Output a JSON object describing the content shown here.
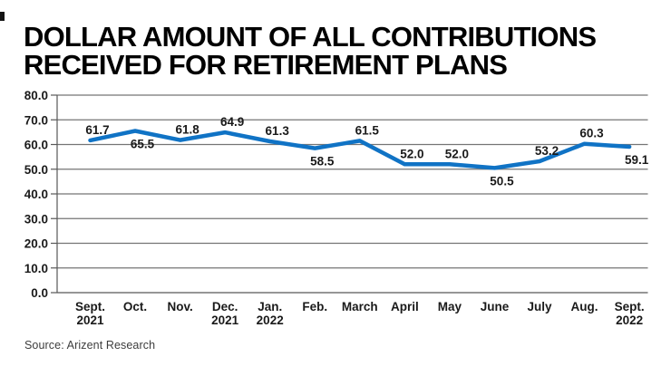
{
  "title": {
    "line1": "DOLLAR AMOUNT OF ALL CONTRIBUTIONS",
    "line2": "RECEIVED FOR RETIREMENT PLANS"
  },
  "source": {
    "label": "Source: Arizent Research"
  },
  "colors": {
    "line": "#1073C5",
    "grid": "#757575",
    "axis": "#585858",
    "chart_text": "#1a1a1a",
    "title_text": "#000000",
    "source_text": "#3d3d3d"
  },
  "chart_data": {
    "type": "line",
    "title": "DOLLAR AMOUNT OF ALL CONTRIBUTIONS RECEIVED FOR RETIREMENT PLANS",
    "categories": [
      "Sept. 2021",
      "Oct.",
      "Nov.",
      "Dec. 2021",
      "Jan. 2022",
      "Feb.",
      "March",
      "April",
      "May",
      "June",
      "July",
      "Aug.",
      "Sept. 2022"
    ],
    "category_lines": [
      [
        "Sept.",
        "2021"
      ],
      [
        "Oct."
      ],
      [
        "Nov."
      ],
      [
        "Dec.",
        "2021"
      ],
      [
        "Jan.",
        "2022"
      ],
      [
        "Feb."
      ],
      [
        "March"
      ],
      [
        "April"
      ],
      [
        "May"
      ],
      [
        "June"
      ],
      [
        "July"
      ],
      [
        "Aug."
      ],
      [
        "Sept.",
        "2022"
      ]
    ],
    "series": [
      {
        "name": "Dollar amount of all contributions",
        "values": [
          61.7,
          65.5,
          61.8,
          64.9,
          61.3,
          58.5,
          61.5,
          52.0,
          52.0,
          50.5,
          53.2,
          60.3,
          59.1
        ]
      }
    ],
    "data_labels": [
      "61.7",
      "65.5",
      "61.8",
      "64.9",
      "61.3",
      "58.5",
      "61.5",
      "52.0",
      "52.0",
      "50.5",
      "53.2",
      "60.3",
      "59.1"
    ],
    "label_positions": [
      "above",
      "below",
      "above",
      "above",
      "above",
      "below",
      "above",
      "above",
      "above",
      "below",
      "above",
      "above",
      "below"
    ],
    "y_axis": {
      "min": 0,
      "max": 80,
      "step": 10,
      "tick_labels": [
        "80.0",
        "70.0",
        "60.0",
        "50.0",
        "40.0",
        "30.0",
        "20.0",
        "10.0",
        "0.0"
      ]
    },
    "x_label": "",
    "y_label": "",
    "grid": "horizontal",
    "legend": "none"
  }
}
